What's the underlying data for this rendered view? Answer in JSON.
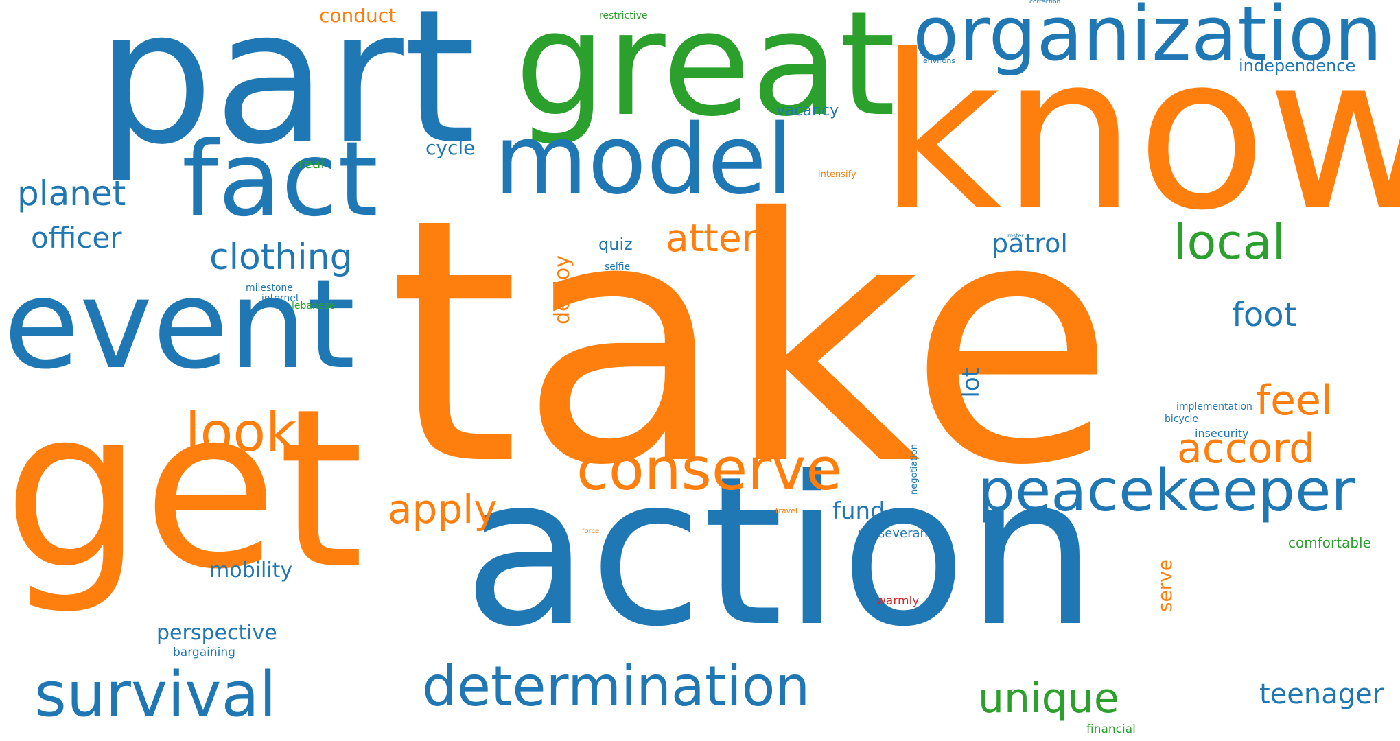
{
  "palette": {
    "blue": "#1f77b4",
    "orange": "#ff7f0e",
    "green": "#2ca02c",
    "red": "#d62728"
  },
  "words": [
    {
      "text": "take",
      "color": "orange"
    },
    {
      "text": "know",
      "color": "orange"
    },
    {
      "text": "get",
      "color": "orange"
    },
    {
      "text": "action",
      "color": "blue"
    },
    {
      "text": "part",
      "color": "blue"
    },
    {
      "text": "great",
      "color": "green"
    },
    {
      "text": "event",
      "color": "blue"
    },
    {
      "text": "organization",
      "color": "blue"
    },
    {
      "text": "fact",
      "color": "blue"
    },
    {
      "text": "model",
      "color": "blue"
    },
    {
      "text": "determination",
      "color": "blue"
    },
    {
      "text": "survival",
      "color": "blue"
    },
    {
      "text": "peacekeeper",
      "color": "blue"
    },
    {
      "text": "conserve",
      "color": "orange"
    },
    {
      "text": "look",
      "color": "orange"
    },
    {
      "text": "local",
      "color": "green"
    },
    {
      "text": "unique",
      "color": "green"
    },
    {
      "text": "accord",
      "color": "orange"
    },
    {
      "text": "feel",
      "color": "orange"
    },
    {
      "text": "apply",
      "color": "orange"
    },
    {
      "text": "attend",
      "color": "orange"
    },
    {
      "text": "clothing",
      "color": "blue"
    },
    {
      "text": "planet",
      "color": "blue"
    },
    {
      "text": "officer",
      "color": "blue"
    },
    {
      "text": "foot",
      "color": "blue"
    },
    {
      "text": "teenager",
      "color": "blue"
    },
    {
      "text": "patrol",
      "color": "blue"
    },
    {
      "text": "perspective",
      "color": "blue"
    },
    {
      "text": "mobility",
      "color": "blue"
    },
    {
      "text": "fund",
      "color": "blue"
    },
    {
      "text": "conduct",
      "color": "orange"
    },
    {
      "text": "independence",
      "color": "blue"
    },
    {
      "text": "vacancy",
      "color": "blue"
    },
    {
      "text": "cycle",
      "color": "blue"
    },
    {
      "text": "quiz",
      "color": "blue"
    },
    {
      "text": "real",
      "color": "green"
    },
    {
      "text": "comfortable",
      "color": "green"
    },
    {
      "text": "perseverance",
      "color": "blue"
    },
    {
      "text": "bargaining",
      "color": "blue"
    },
    {
      "text": "insecurity",
      "color": "blue"
    },
    {
      "text": "implementation",
      "color": "blue"
    },
    {
      "text": "bicycle",
      "color": "blue"
    },
    {
      "text": "warmly",
      "color": "red"
    },
    {
      "text": "financial",
      "color": "green"
    },
    {
      "text": "restrictive",
      "color": "green"
    },
    {
      "text": "milestone",
      "color": "blue"
    },
    {
      "text": "internet",
      "color": "blue"
    },
    {
      "text": "lebanese",
      "color": "green"
    },
    {
      "text": "selfie",
      "color": "blue"
    },
    {
      "text": "intensify",
      "color": "orange"
    },
    {
      "text": "environs",
      "color": "blue"
    },
    {
      "text": "travel",
      "color": "orange"
    },
    {
      "text": "force",
      "color": "orange"
    },
    {
      "text": "correction",
      "color": "blue"
    },
    {
      "text": "roster",
      "color": "blue"
    },
    {
      "text": "deploy",
      "color": "orange"
    },
    {
      "text": "lot",
      "color": "blue"
    },
    {
      "text": "serve",
      "color": "orange"
    },
    {
      "text": "negotiation",
      "color": "blue"
    }
  ]
}
